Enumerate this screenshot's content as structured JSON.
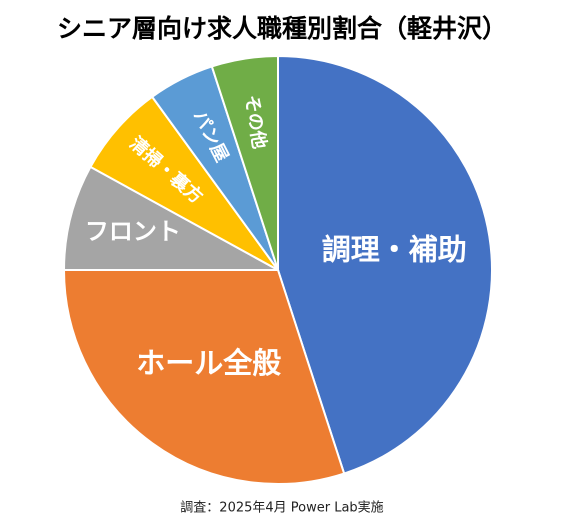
{
  "chart_data": {
    "type": "pie",
    "title": "シニア層向け求人職種別割合（軽井沢）",
    "categories": [
      "調理・補助",
      "ホール全般",
      "フロント",
      "清掃・裏方",
      "パン屋",
      "その他"
    ],
    "values": [
      45,
      30,
      8,
      7,
      5,
      5
    ],
    "colors": [
      "#4472c4",
      "#ed7d31",
      "#a5a5a5",
      "#ffc000",
      "#5b9bd5",
      "#70ad47"
    ],
    "note": "調査：2025年4月 Power Lab実施"
  }
}
